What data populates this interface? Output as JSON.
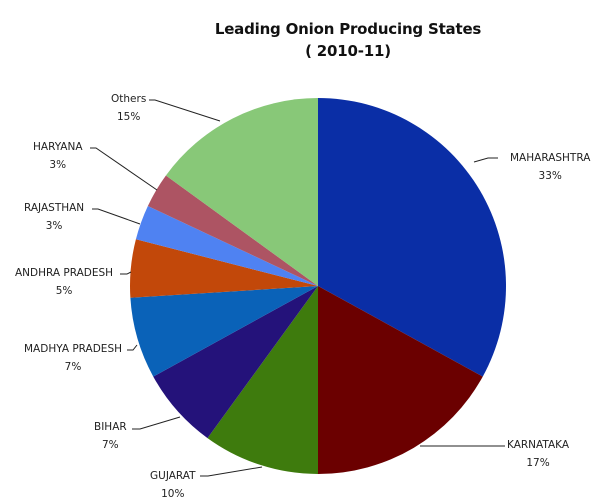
{
  "chart_data": {
    "type": "pie",
    "title": "Leading Onion Producing States",
    "subtitle": "( 2010-11)",
    "categories": [
      "MAHARASHTRA",
      "KARNATAKA",
      "GUJARAT",
      "BIHAR",
      "MADHYA PRADESH",
      "ANDHRA PRADESH",
      "RAJASTHAN",
      "HARYANA",
      "Others"
    ],
    "values": [
      33,
      17,
      10,
      7,
      7,
      5,
      3,
      3,
      15
    ],
    "value_labels": [
      "33%",
      "17%",
      "10%",
      "7%",
      "7%",
      "5%",
      "3%",
      "3%",
      "15%"
    ],
    "colors": [
      "#0a2ea6",
      "#6b0000",
      "#3e7b0d",
      "#24127a",
      "#0a62b8",
      "#c2480a",
      "#4f82f2",
      "#ad5463",
      "#88c878"
    ],
    "start_angle": "12 o'clock, clockwise",
    "legend": "none (data labels with leader lines)"
  },
  "labels": [
    {
      "name": "MAHARASHTRA",
      "pct": "33%"
    },
    {
      "name": "KARNATAKA",
      "pct": "17%"
    },
    {
      "name": "GUJARAT",
      "pct": "10%"
    },
    {
      "name": "BIHAR",
      "pct": "7%"
    },
    {
      "name": "MADHYA PRADESH",
      "pct": "7%"
    },
    {
      "name": "ANDHRA PRADESH",
      "pct": "5%"
    },
    {
      "name": "RAJASTHAN",
      "pct": "3%"
    },
    {
      "name": "HARYANA",
      "pct": "3%"
    },
    {
      "name": "Others",
      "pct": "15%"
    }
  ]
}
